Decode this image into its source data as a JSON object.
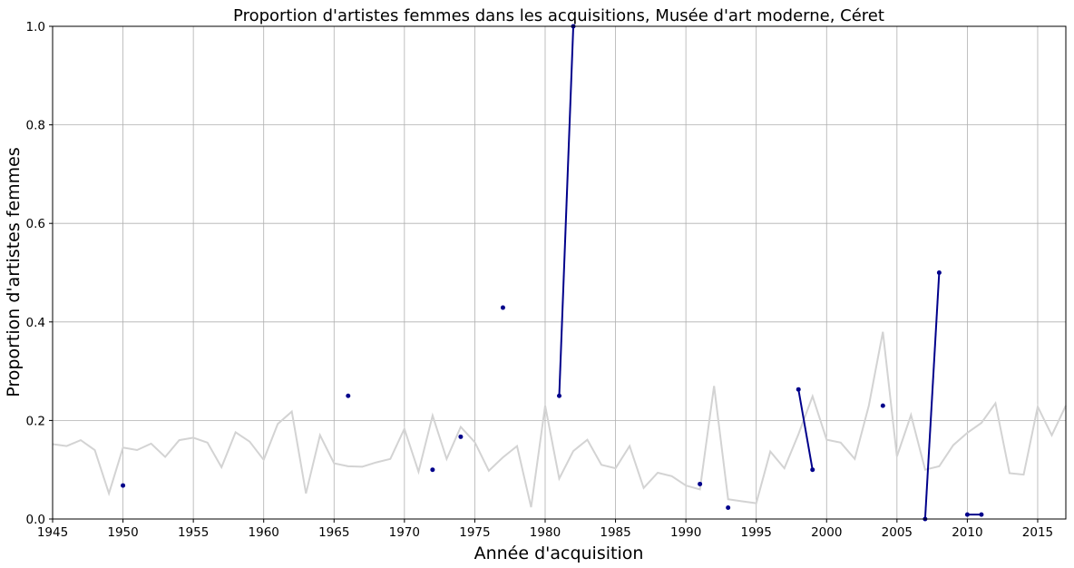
{
  "chart_data": {
    "type": "line",
    "title": "Proportion d'artistes femmes dans les acquisitions, Musée d'art moderne, Céret",
    "xlabel": "Année d'acquisition",
    "ylabel": "Proportion d'artistes femmes",
    "xlim": [
      1945,
      2017
    ],
    "ylim": [
      0,
      1
    ],
    "xticks": [
      1945,
      1950,
      1955,
      1960,
      1965,
      1970,
      1975,
      1980,
      1985,
      1990,
      1995,
      2000,
      2005,
      2010,
      2015
    ],
    "xtick_labels": [
      "1945",
      "1950",
      "1955",
      "1960",
      "1965",
      "1970",
      "1975",
      "1980",
      "1985",
      "1990",
      "1995",
      "2000",
      "2005",
      "2010",
      "2015"
    ],
    "yticks": [
      0,
      0.2,
      0.4,
      0.6,
      0.8,
      1.0
    ],
    "ytick_labels": [
      "0.0",
      "0.2",
      "0.4",
      "0.6",
      "0.8",
      "1.0"
    ],
    "grid": true,
    "series": [
      {
        "role": "reference",
        "color": "#d3d3d3",
        "x": [
          1945,
          1946,
          1947,
          1948,
          1949,
          1950,
          1951,
          1952,
          1953,
          1954,
          1955,
          1956,
          1957,
          1958,
          1959,
          1960,
          1961,
          1962,
          1963,
          1964,
          1965,
          1966,
          1967,
          1968,
          1969,
          1970,
          1971,
          1972,
          1973,
          1974,
          1975,
          1976,
          1977,
          1978,
          1979,
          1980,
          1981,
          1982,
          1983,
          1984,
          1985,
          1986,
          1987,
          1988,
          1989,
          1990,
          1991,
          1992,
          1993,
          1994,
          1995,
          1996,
          1997,
          1998,
          1999,
          2000,
          2001,
          2002,
          2003,
          2004,
          2005,
          2006,
          2007,
          2008,
          2009,
          2010,
          2011,
          2012,
          2013,
          2014,
          2015,
          2016,
          2017
        ],
        "values": [
          0.152,
          0.148,
          0.16,
          0.14,
          0.052,
          0.145,
          0.14,
          0.153,
          0.126,
          0.16,
          0.165,
          0.155,
          0.105,
          0.176,
          0.157,
          0.12,
          0.193,
          0.218,
          0.052,
          0.17,
          0.113,
          0.107,
          0.106,
          0.115,
          0.122,
          0.183,
          0.096,
          0.21,
          0.122,
          0.187,
          0.156,
          0.098,
          0.125,
          0.148,
          0.024,
          0.23,
          0.082,
          0.138,
          0.161,
          0.11,
          0.103,
          0.148,
          0.063,
          0.094,
          0.087,
          0.068,
          0.06,
          0.27,
          0.04,
          0.036,
          0.032,
          0.137,
          0.103,
          0.172,
          0.249,
          0.161,
          0.155,
          0.122,
          0.23,
          0.38,
          0.127,
          0.211,
          0.1,
          0.107,
          0.15,
          0.175,
          0.195,
          0.235,
          0.093,
          0.09,
          0.228,
          0.17,
          0.23
        ]
      },
      {
        "role": "museum",
        "color": "#00008b",
        "x": [
          1950,
          1951,
          1952,
          1953,
          1954,
          1955,
          1956,
          1957,
          1958,
          1959,
          1960,
          1961,
          1962,
          1963,
          1964,
          1965,
          1966,
          1967,
          1968,
          1969,
          1970,
          1971,
          1972,
          1973,
          1974,
          1975,
          1976,
          1977,
          1978,
          1979,
          1980,
          1981,
          1982,
          1983,
          1984,
          1985,
          1986,
          1987,
          1988,
          1989,
          1990,
          1991,
          1992,
          1993,
          1994,
          1995,
          1996,
          1997,
          1998,
          1999,
          2000,
          2001,
          2002,
          2003,
          2004,
          2005,
          2006,
          2007,
          2008,
          2009,
          2010,
          2011
        ],
        "values": [
          0.068,
          null,
          null,
          null,
          null,
          null,
          null,
          null,
          null,
          null,
          null,
          null,
          null,
          null,
          null,
          null,
          0.25,
          null,
          null,
          null,
          null,
          null,
          0.1,
          null,
          0.167,
          null,
          null,
          0.429,
          null,
          null,
          null,
          0.25,
          1.0,
          null,
          null,
          null,
          null,
          null,
          null,
          null,
          null,
          0.071,
          null,
          0.023,
          null,
          null,
          null,
          null,
          0.263,
          0.1,
          null,
          null,
          null,
          null,
          0.23,
          null,
          null,
          0.0,
          0.5,
          null,
          0.009,
          0.009
        ]
      }
    ]
  }
}
